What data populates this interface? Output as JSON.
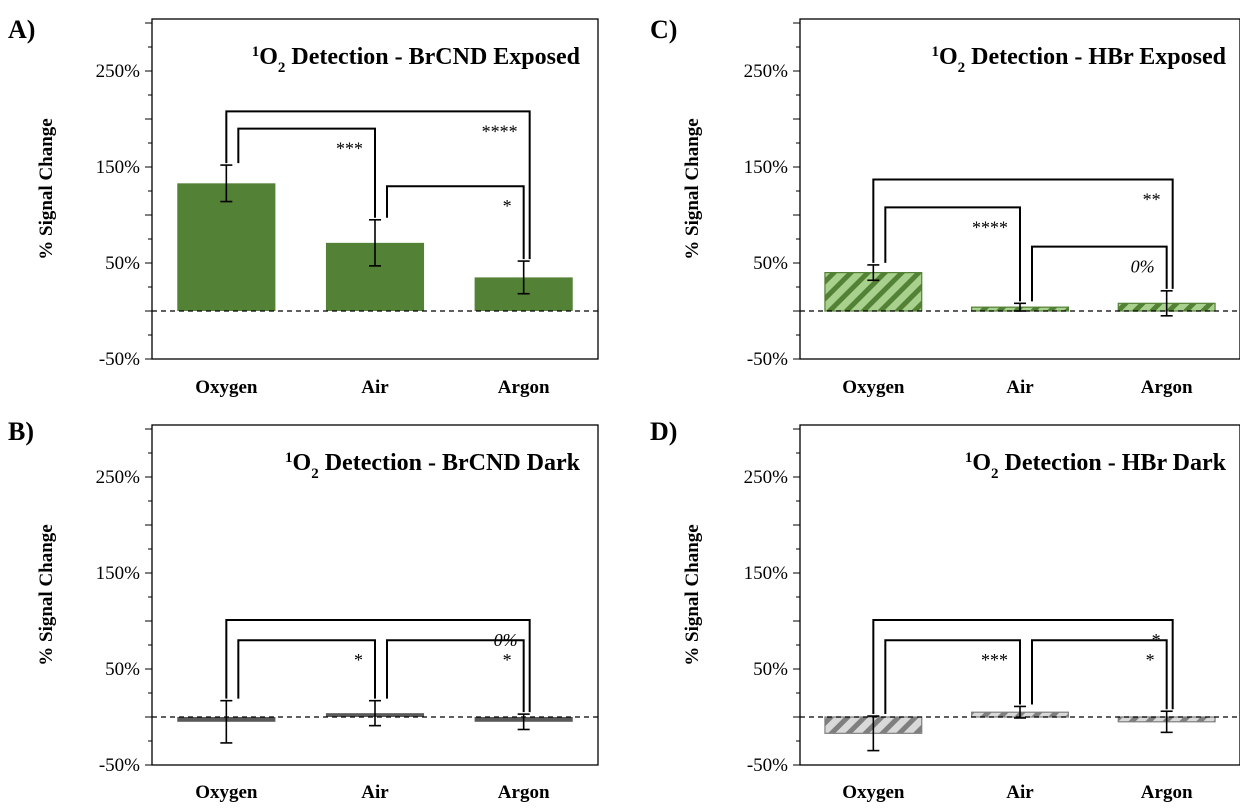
{
  "chart_data": [
    {
      "panel": "A)",
      "type": "bar",
      "title_prefix": "1",
      "title_sub": "O",
      "title_subscript": "2",
      "title_rest": " Detection - BrCND Exposed",
      "ylabel": "% Signal Change",
      "categories": [
        "Oxygen",
        "Air",
        "Argon"
      ],
      "values": [
        133,
        71,
        35
      ],
      "errors": [
        19,
        24,
        17
      ],
      "ylim": [
        -50,
        300
      ],
      "yticks": [
        "250%",
        "150%",
        "50%",
        "-50%"
      ],
      "ytick_values": [
        250,
        150,
        50,
        -50
      ],
      "baseline": 0,
      "fill": "#538135",
      "hatched": false,
      "brackets": [
        {
          "from": 0,
          "to": 2,
          "level": 208,
          "label": "****"
        },
        {
          "from": 0,
          "to": 1,
          "level": 190,
          "label": "***"
        },
        {
          "from": 1,
          "to": 2,
          "level": 130,
          "label": "*"
        }
      ]
    },
    {
      "panel": "B)",
      "type": "bar",
      "title_prefix": "1",
      "title_sub": "O",
      "title_subscript": "2",
      "title_rest": " Detection - BrCND Dark",
      "ylabel": "% Signal Change",
      "categories": [
        "Oxygen",
        "Air",
        "Argon"
      ],
      "values": [
        -5,
        4,
        -5
      ],
      "errors": [
        22,
        13,
        8
      ],
      "ylim": [
        -50,
        300
      ],
      "yticks": [
        "250%",
        "150%",
        "50%",
        "-50%"
      ],
      "ytick_values": [
        250,
        150,
        50,
        -50
      ],
      "baseline": 0,
      "fill": "#595959",
      "hatched": false,
      "brackets": [
        {
          "from": 0,
          "to": 2,
          "level": 101,
          "label": "0%"
        },
        {
          "from": 0,
          "to": 1,
          "level": 80,
          "label": "*"
        },
        {
          "from": 1,
          "to": 2,
          "level": 80,
          "label": "*"
        }
      ]
    },
    {
      "panel": "C)",
      "type": "bar",
      "title_prefix": "1",
      "title_sub": "O",
      "title_subscript": "2",
      "title_rest": " Detection - HBr Exposed",
      "ylabel": "% Signal Change",
      "categories": [
        "Oxygen",
        "Air",
        "Argon"
      ],
      "values": [
        40,
        4,
        8
      ],
      "errors": [
        8,
        4,
        13
      ],
      "ylim": [
        -50,
        300
      ],
      "yticks": [
        "250%",
        "150%",
        "50%",
        "-50%"
      ],
      "ytick_values": [
        250,
        150,
        50,
        -50
      ],
      "baseline": 0,
      "fill": "#a9d18e",
      "stripe": "#538135",
      "hatched": true,
      "brackets": [
        {
          "from": 0,
          "to": 2,
          "level": 137,
          "label": "**"
        },
        {
          "from": 0,
          "to": 1,
          "level": 108,
          "label": "****"
        },
        {
          "from": 1,
          "to": 2,
          "level": 67,
          "label": "0%"
        }
      ]
    },
    {
      "panel": "D)",
      "type": "bar",
      "title_prefix": "1",
      "title_sub": "O",
      "title_subscript": "2",
      "title_rest": " Detection - HBr Dark",
      "ylabel": "% Signal Change",
      "categories": [
        "Oxygen",
        "Air",
        "Argon"
      ],
      "values": [
        -17,
        5,
        -5
      ],
      "errors": [
        18,
        6,
        11
      ],
      "ylim": [
        -50,
        300
      ],
      "yticks": [
        "250%",
        "150%",
        "50%",
        "-50%"
      ],
      "ytick_values": [
        250,
        150,
        50,
        -50
      ],
      "baseline": 0,
      "fill": "#d9d9d9",
      "stripe": "#7f7f7f",
      "hatched": true,
      "brackets": [
        {
          "from": 0,
          "to": 2,
          "level": 101,
          "label": "*"
        },
        {
          "from": 0,
          "to": 1,
          "level": 80,
          "label": "***"
        },
        {
          "from": 1,
          "to": 2,
          "level": 80,
          "label": "*"
        }
      ]
    }
  ]
}
